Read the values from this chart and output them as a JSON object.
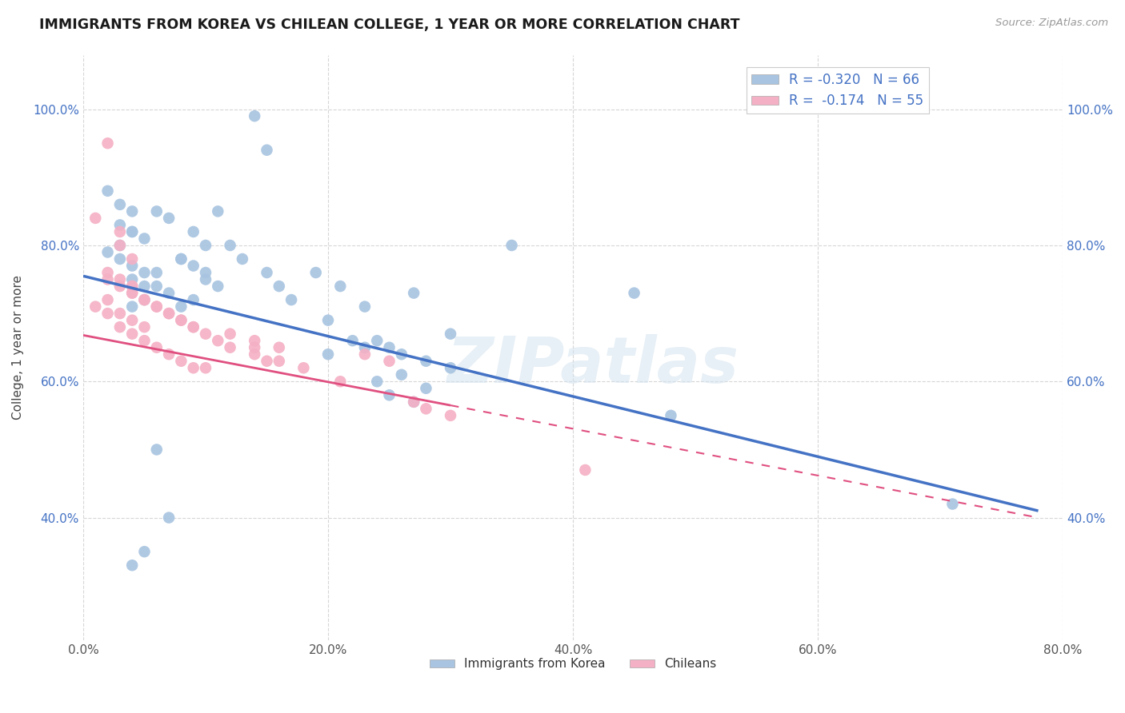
{
  "title": "IMMIGRANTS FROM KOREA VS CHILEAN COLLEGE, 1 YEAR OR MORE CORRELATION CHART",
  "source": "Source: ZipAtlas.com",
  "xlabel": "",
  "ylabel": "College, 1 year or more",
  "xlim": [
    0.0,
    0.8
  ],
  "ylim": [
    0.22,
    1.08
  ],
  "xticks": [
    0.0,
    0.2,
    0.4,
    0.6,
    0.8
  ],
  "xtick_labels": [
    "0.0%",
    "20.0%",
    "40.0%",
    "60.0%",
    "80.0%"
  ],
  "yticks": [
    0.4,
    0.6,
    0.8,
    1.0
  ],
  "ytick_labels": [
    "40.0%",
    "60.0%",
    "80.0%",
    "100.0%"
  ],
  "korea_color": "#a8c4e0",
  "korea_line_color": "#4472c4",
  "chilean_color": "#f4b0c4",
  "chilean_line_color": "#e05080",
  "R_korea": -0.32,
  "N_korea": 66,
  "R_chilean": -0.174,
  "N_chilean": 55,
  "legend_label_korea": "Immigrants from Korea",
  "legend_label_chilean": "Chileans",
  "watermark": "ZIPatlas",
  "korea_x": [
    0.14,
    0.15,
    0.02,
    0.03,
    0.04,
    0.03,
    0.04,
    0.04,
    0.05,
    0.03,
    0.02,
    0.03,
    0.04,
    0.05,
    0.06,
    0.04,
    0.05,
    0.06,
    0.07,
    0.05,
    0.04,
    0.06,
    0.07,
    0.08,
    0.09,
    0.1,
    0.08,
    0.09,
    0.1,
    0.11,
    0.12,
    0.13,
    0.1,
    0.11,
    0.09,
    0.08,
    0.15,
    0.16,
    0.17,
    0.19,
    0.21,
    0.35,
    0.23,
    0.2,
    0.27,
    0.45,
    0.3,
    0.48,
    0.2,
    0.24,
    0.25,
    0.71,
    0.06,
    0.07,
    0.05,
    0.04,
    0.22,
    0.23,
    0.26,
    0.28,
    0.3,
    0.26,
    0.24,
    0.28,
    0.25,
    0.27
  ],
  "korea_y": [
    0.99,
    0.94,
    0.88,
    0.86,
    0.85,
    0.83,
    0.82,
    0.82,
    0.81,
    0.8,
    0.79,
    0.78,
    0.77,
    0.76,
    0.76,
    0.75,
    0.74,
    0.74,
    0.73,
    0.72,
    0.71,
    0.85,
    0.84,
    0.78,
    0.82,
    0.8,
    0.78,
    0.77,
    0.76,
    0.85,
    0.8,
    0.78,
    0.75,
    0.74,
    0.72,
    0.71,
    0.76,
    0.74,
    0.72,
    0.76,
    0.74,
    0.8,
    0.71,
    0.69,
    0.73,
    0.73,
    0.67,
    0.55,
    0.64,
    0.66,
    0.65,
    0.42,
    0.5,
    0.4,
    0.35,
    0.33,
    0.66,
    0.65,
    0.64,
    0.63,
    0.62,
    0.61,
    0.6,
    0.59,
    0.58,
    0.57
  ],
  "chilean_x": [
    0.02,
    0.01,
    0.03,
    0.03,
    0.04,
    0.02,
    0.03,
    0.04,
    0.04,
    0.02,
    0.01,
    0.02,
    0.03,
    0.04,
    0.05,
    0.03,
    0.04,
    0.05,
    0.06,
    0.07,
    0.08,
    0.09,
    0.1,
    0.04,
    0.05,
    0.06,
    0.07,
    0.08,
    0.09,
    0.1,
    0.11,
    0.12,
    0.14,
    0.16,
    0.18,
    0.21,
    0.14,
    0.15,
    0.27,
    0.28,
    0.3,
    0.41,
    0.02,
    0.03,
    0.04,
    0.05,
    0.06,
    0.07,
    0.08,
    0.09,
    0.12,
    0.14,
    0.16,
    0.23,
    0.25
  ],
  "chilean_y": [
    0.95,
    0.84,
    0.82,
    0.8,
    0.78,
    0.76,
    0.75,
    0.74,
    0.74,
    0.72,
    0.71,
    0.7,
    0.7,
    0.69,
    0.68,
    0.68,
    0.67,
    0.66,
    0.65,
    0.64,
    0.63,
    0.62,
    0.62,
    0.73,
    0.72,
    0.71,
    0.7,
    0.69,
    0.68,
    0.67,
    0.66,
    0.65,
    0.64,
    0.63,
    0.62,
    0.6,
    0.65,
    0.63,
    0.57,
    0.56,
    0.55,
    0.47,
    0.75,
    0.74,
    0.73,
    0.72,
    0.71,
    0.7,
    0.69,
    0.68,
    0.67,
    0.66,
    0.65,
    0.64,
    0.63
  ],
  "korea_line_x0": 0.0,
  "korea_line_y0": 0.755,
  "korea_line_x1": 0.78,
  "korea_line_y1": 0.41,
  "chilean_line_solid_x0": 0.0,
  "chilean_line_solid_y0": 0.668,
  "chilean_line_solid_x1": 0.3,
  "chilean_line_solid_y1": 0.565,
  "chilean_line_dash_x0": 0.3,
  "chilean_line_dash_y0": 0.565,
  "chilean_line_dash_x1": 0.78,
  "chilean_line_dash_y1": 0.4
}
